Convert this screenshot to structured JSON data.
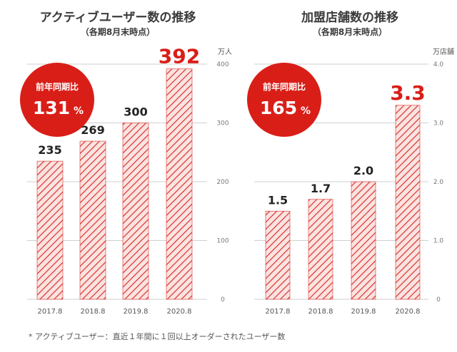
{
  "colors": {
    "accent": "#d91e18",
    "text": "#333333",
    "grid": "#cfcfcf",
    "bar_fill": "#f6d9d7"
  },
  "chart_data": [
    {
      "type": "bar",
      "title": "アクティブユーザー数の推移",
      "subtitle": "（各期8月末時点）",
      "unit": "万人",
      "categories": [
        "2017.8",
        "2018.8",
        "2019.8",
        "2020.8"
      ],
      "values": [
        235,
        269,
        300,
        392
      ],
      "value_labels": [
        "235",
        "269",
        "300",
        "392"
      ],
      "yticks": [
        0,
        100,
        200,
        300,
        400
      ],
      "ytick_labels": [
        "0",
        "100",
        "200",
        "300",
        "400"
      ],
      "ylim": [
        0,
        400
      ],
      "badge": {
        "line1": "前年同期比",
        "line2": "131",
        "suffix": "%"
      },
      "highlight_index": 3
    },
    {
      "type": "bar",
      "title": "加盟店舗数の推移",
      "subtitle": "（各期8月末時点）",
      "unit": "万店舗",
      "categories": [
        "2017.8",
        "2018.8",
        "2019.8",
        "2020.8"
      ],
      "values": [
        1.5,
        1.7,
        2.0,
        3.3
      ],
      "value_labels": [
        "1.5",
        "1.7",
        "2.0",
        "3.3"
      ],
      "yticks": [
        0,
        1,
        2,
        3,
        4
      ],
      "ytick_labels": [
        "0",
        "1.0",
        "2.0",
        "3.0",
        "4.0"
      ],
      "ylim": [
        0,
        4
      ],
      "badge": {
        "line1": "前年同期比",
        "line2": "165",
        "suffix": "%"
      },
      "highlight_index": 3
    }
  ],
  "footnote": "* アクティブユーザー：直近１年間に１回以上オーダーされたユーザー数"
}
